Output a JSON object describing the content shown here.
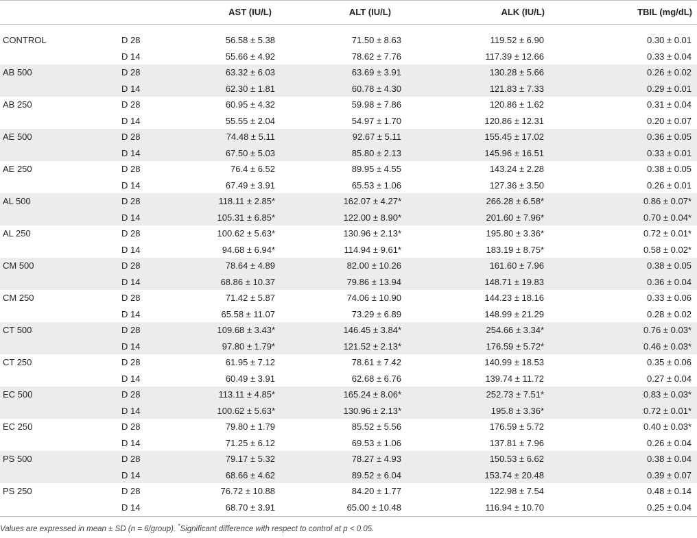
{
  "table": {
    "headers": {
      "ast": "AST (IU/L)",
      "alt": "ALT (IU/L)",
      "alk": "ALK (IU/L)",
      "tbil": "TBIL (mg/dL)"
    },
    "rows": [
      {
        "group": "CONTROL",
        "day": "D 28",
        "ast": "56.58 ± 5.38",
        "alt": "71.50 ± 8.63",
        "alk": "119.52 ± 6.90",
        "tbil": "0.30 ± 0.01"
      },
      {
        "group": "",
        "day": "D 14",
        "ast": "55.66 ± 4.92",
        "alt": "78.62 ± 7.76",
        "alk": "117.39 ± 12.66",
        "tbil": "0.33 ± 0.04"
      },
      {
        "group": "AB 500",
        "day": "D 28",
        "ast": "63.32 ± 6.03",
        "alt": "63.69 ± 3.91",
        "alk": "130.28 ± 5.66",
        "tbil": "0.26 ± 0.02"
      },
      {
        "group": "",
        "day": "D 14",
        "ast": "62.30 ± 1.81",
        "alt": "60.78 ± 4.30",
        "alk": "121.83 ± 7.33",
        "tbil": "0.29 ± 0.01"
      },
      {
        "group": "AB 250",
        "day": "D 28",
        "ast": "60.95 ± 4.32",
        "alt": "59.98 ± 7.86",
        "alk": "120.86 ± 1.62",
        "tbil": "0.31 ± 0.04"
      },
      {
        "group": "",
        "day": "D 14",
        "ast": "55.55 ± 2.04",
        "alt": "54.97 ± 1.70",
        "alk": "120.86 ± 12.31",
        "tbil": "0.20 ± 0.07"
      },
      {
        "group": "AE 500",
        "day": "D 28",
        "ast": "74.48 ± 5.11",
        "alt": "92.67 ± 5.11",
        "alk": "155.45 ± 17.02",
        "tbil": "0.36 ± 0.05"
      },
      {
        "group": "",
        "day": "D 14",
        "ast": "67.50 ± 5.03",
        "alt": "85.80 ± 2.13",
        "alk": "145.96 ± 16.51",
        "tbil": "0.33 ± 0.01"
      },
      {
        "group": "AE 250",
        "day": "D 28",
        "ast": "76.4 ± 6.52",
        "alt": "89.95 ± 4.55",
        "alk": "143.24 ± 2.28",
        "tbil": "0.38 ± 0.05"
      },
      {
        "group": "",
        "day": "D 14",
        "ast": "67.49 ± 3.91",
        "alt": "65.53 ± 1.06",
        "alk": "127.36 ± 3.50",
        "tbil": "0.26 ± 0.01"
      },
      {
        "group": "AL 500",
        "day": "D 28",
        "ast": "118.11 ± 2.85*",
        "alt": "162.07 ± 4.27*",
        "alk": "266.28 ± 6.58*",
        "tbil": "0.86 ± 0.07*"
      },
      {
        "group": "",
        "day": "D 14",
        "ast": "105.31 ± 6.85*",
        "alt": "122.00 ± 8.90*",
        "alk": "201.60 ± 7.96*",
        "tbil": "0.70 ± 0.04*"
      },
      {
        "group": "AL 250",
        "day": "D 28",
        "ast": "100.62 ± 5.63*",
        "alt": "130.96 ± 2.13*",
        "alk": "195.80 ± 3.36*",
        "tbil": "0.72 ± 0.01*"
      },
      {
        "group": "",
        "day": "D 14",
        "ast": "94.68 ± 6.94*",
        "alt": "114.94 ± 9.61*",
        "alk": "183.19 ± 8.75*",
        "tbil": "0.58 ± 0.02*"
      },
      {
        "group": "CM 500",
        "day": "D 28",
        "ast": "78.64 ± 4.89",
        "alt": "82.00 ± 10.26",
        "alk": "161.60 ± 7.96",
        "tbil": "0.38 ± 0.05"
      },
      {
        "group": "",
        "day": "D 14",
        "ast": "68.86 ± 10.37",
        "alt": "79.86 ± 13.94",
        "alk": "148.71 ± 19.83",
        "tbil": "0.36 ± 0.04"
      },
      {
        "group": "CM 250",
        "day": "D 28",
        "ast": "71.42 ± 5.87",
        "alt": "74.06 ± 10.90",
        "alk": "144.23 ± 18.16",
        "tbil": "0.33 ± 0.06"
      },
      {
        "group": "",
        "day": "D 14",
        "ast": "65.58 ± 11.07",
        "alt": "73.29 ± 6.89",
        "alk": "148.99 ± 21.29",
        "tbil": "0.28 ± 0.02"
      },
      {
        "group": "CT 500",
        "day": "D 28",
        "ast": "109.68 ± 3.43*",
        "alt": "146.45 ± 3.84*",
        "alk": "254.66 ± 3.34*",
        "tbil": "0.76 ± 0.03*"
      },
      {
        "group": "",
        "day": "D 14",
        "ast": "97.80 ± 1.79*",
        "alt": "121.52 ± 2.13*",
        "alk": "176.59 ± 5.72*",
        "tbil": "0.46 ± 0.03*"
      },
      {
        "group": "CT 250",
        "day": "D 28",
        "ast": "61.95 ± 7.12",
        "alt": "78.61 ± 7.42",
        "alk": "140.99 ± 18.53",
        "tbil": "0.35 ± 0.06"
      },
      {
        "group": "",
        "day": "D 14",
        "ast": "60.49 ± 3.91",
        "alt": "62.68 ± 6.76",
        "alk": "139.74 ± 11.72",
        "tbil": "0.27 ± 0.04"
      },
      {
        "group": "EC 500",
        "day": "D 28",
        "ast": "113.11 ± 4.85*",
        "alt": "165.24 ± 8.06*",
        "alk": "252.73 ± 7.51*",
        "tbil": "0.83 ± 0.03*"
      },
      {
        "group": "",
        "day": "D 14",
        "ast": "100.62 ± 5.63*",
        "alt": "130.96 ± 2.13*",
        "alk": "195.8 ± 3.36*",
        "tbil": "0.72 ± 0.01*"
      },
      {
        "group": "EC 250",
        "day": "D 28",
        "ast": "79.80 ± 1.79",
        "alt": "85.52 ± 5.56",
        "alk": "176.59 ± 5.72",
        "tbil": "0.40 ± 0.03*"
      },
      {
        "group": "",
        "day": "D 14",
        "ast": "71.25 ± 6.12",
        "alt": "69.53 ± 1.06",
        "alk": "137.81 ± 7.96",
        "tbil": "0.26 ± 0.04"
      },
      {
        "group": "PS 500",
        "day": "D 28",
        "ast": "79.17 ± 5.32",
        "alt": "78.27 ± 4.93",
        "alk": "150.53 ± 6.62",
        "tbil": "0.38 ± 0.04"
      },
      {
        "group": "",
        "day": "D 14",
        "ast": "68.66 ± 4.62",
        "alt": "89.52 ± 6.04",
        "alk": "153.74 ± 20.48",
        "tbil": "0.39 ± 0.07"
      },
      {
        "group": "PS 250",
        "day": "D 28",
        "ast": "76.72 ± 10.88",
        "alt": "84.20 ± 1.77",
        "alk": "122.98 ± 7.54",
        "tbil": "0.48 ± 0.14"
      },
      {
        "group": "",
        "day": "D 14",
        "ast": "68.70 ± 3.91",
        "alt": "65.00 ± 10.48",
        "alk": "116.94 ± 10.70",
        "tbil": "0.25 ± 0.04"
      }
    ]
  },
  "footnote": {
    "main": "Values are expressed in mean ± SD (n = 6/group). ",
    "mark": "*",
    "rest": "Significant difference with respect to control at p < 0.05."
  }
}
